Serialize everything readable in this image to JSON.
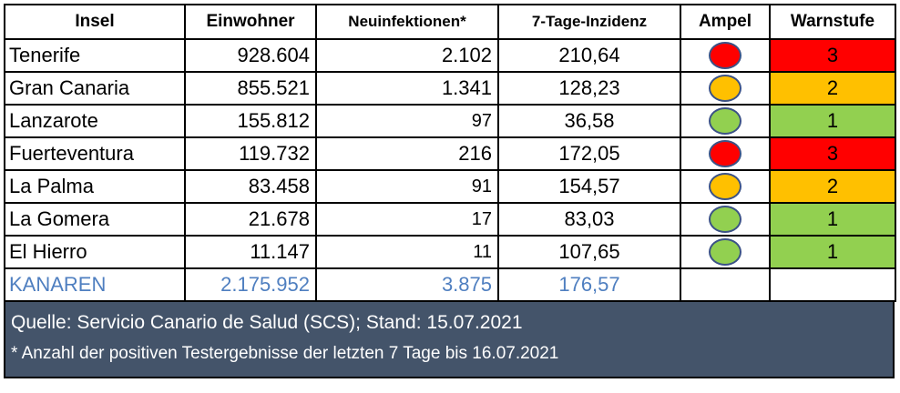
{
  "headers": {
    "insel": "Insel",
    "einwohner": "Einwohner",
    "neuinfektionen": "Neuinfektionen*",
    "inzidenz": "7-Tage-Inzidenz",
    "ampel": "Ampel",
    "warnstufe": "Warnstufe"
  },
  "colors": {
    "red": "#ff0000",
    "orange": "#ffc000",
    "green": "#92d050",
    "total_text": "#4f7fc0",
    "footer_bg": "#44546a"
  },
  "rows": [
    {
      "insel": "Tenerife",
      "einwohner": "928.604",
      "neuinfektionen": "2.102",
      "inzidenz": "210,64",
      "ampel": "red",
      "warnstufe": "3"
    },
    {
      "insel": "Gran Canaria",
      "einwohner": "855.521",
      "neuinfektionen": "1.341",
      "inzidenz": "128,23",
      "ampel": "orange",
      "warnstufe": "2"
    },
    {
      "insel": "Lanzarote",
      "einwohner": "155.812",
      "neuinfektionen": "97",
      "inzidenz": "36,58",
      "ampel": "green",
      "warnstufe": "1"
    },
    {
      "insel": "Fuerteventura",
      "einwohner": "119.732",
      "neuinfektionen": "216",
      "inzidenz": "172,05",
      "ampel": "red",
      "warnstufe": "3"
    },
    {
      "insel": "La Palma",
      "einwohner": "83.458",
      "neuinfektionen": "91",
      "inzidenz": "154,57",
      "ampel": "orange",
      "warnstufe": "2"
    },
    {
      "insel": "La Gomera",
      "einwohner": "21.678",
      "neuinfektionen": "17",
      "inzidenz": "83,03",
      "ampel": "green",
      "warnstufe": "1"
    },
    {
      "insel": "El Hierro",
      "einwohner": "11.147",
      "neuinfektionen": "11",
      "inzidenz": "107,65",
      "ampel": "green",
      "warnstufe": "1"
    }
  ],
  "total": {
    "insel": "KANAREN",
    "einwohner": "2.175.952",
    "neuinfektionen": "3.875",
    "inzidenz": "176,57"
  },
  "footer": {
    "quelle": "Quelle: Servicio Canario de Salud (SCS); Stand: 15.07.2021",
    "hinweis": "* Anzahl der positiven Testergebnisse der letzten 7 Tage bis 16.07.2021"
  }
}
